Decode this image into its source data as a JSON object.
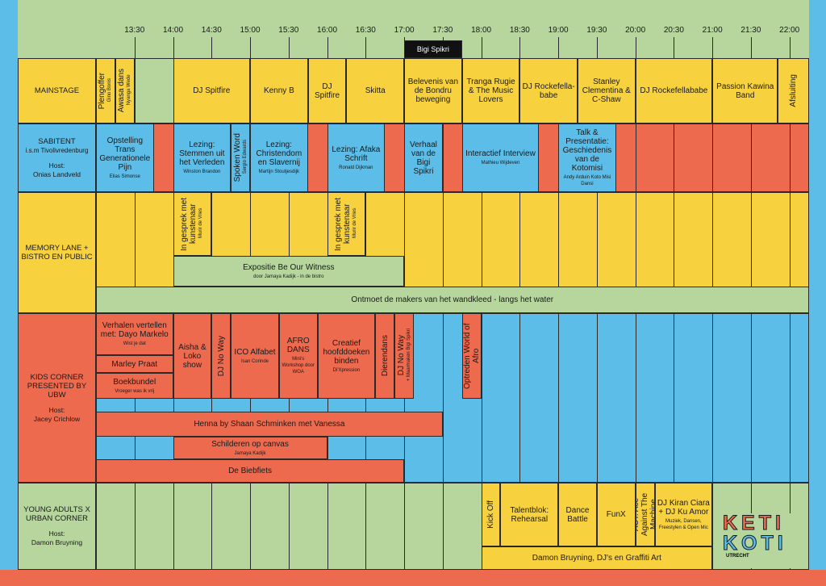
{
  "header": {
    "times": [
      "13:30",
      "14:00",
      "14:30",
      "15:00",
      "15:30",
      "16:00",
      "16:30",
      "17:00",
      "17:30",
      "18:00",
      "18:30",
      "19:00",
      "19:30",
      "20:00",
      "20:30",
      "21:00",
      "21:30",
      "22:00"
    ],
    "highlight": "Bigi Spikri"
  },
  "stages": [
    {
      "name": "MAINSTAGE",
      "events": [
        {
          "title": "Plengoffer",
          "subtitle": "Gino Bonis"
        },
        {
          "title": "Awasa dans",
          "subtitle": "Nyanga Wede"
        },
        {
          "title": "DJ Spitfire"
        },
        {
          "title": "Kenny B"
        },
        {
          "title": "DJ Spitfire"
        },
        {
          "title": "Skitta"
        },
        {
          "title": "Belevenis van de Bondru beweging"
        },
        {
          "title": "Tranga Rugie & The Music Lovers"
        },
        {
          "title": "DJ Rockefella-babe"
        },
        {
          "title": "Stanley Clementina & C-Shaw"
        },
        {
          "title": "DJ Rockefellababe"
        },
        {
          "title": "Passion Kawina Band"
        },
        {
          "title": "Afsluiting"
        }
      ]
    },
    {
      "name": "SABITENT",
      "note": "i.s.m Tivolivredenburg",
      "host_label": "Host:",
      "host": "Onias Landveld",
      "events": [
        {
          "title": "Opstelling Trans Generationele Pijn",
          "subtitle": "Elias Simonse"
        },
        {
          "title": "Lezing: Stemmen uit het Verleden",
          "subtitle": "Winston Brandon"
        },
        {
          "title": "Spoken Word",
          "subtitle": "Sergio Edwards"
        },
        {
          "title": "Lezing: Christendom en Slavernij",
          "subtitle": "Martijn Stoutjesdijk"
        },
        {
          "title": "Lezing: Afaka Schrift",
          "subtitle": "Ronald Dijkman"
        },
        {
          "title": "Verhaal van de Bigi Spikri"
        },
        {
          "title": "Interactief Interview",
          "subtitle": "Mathieu Wijdeven"
        },
        {
          "title": "Talk & Presentatie: Geschiedenis van de Kotomisi",
          "subtitle": "Andy Arduin Koto Misi Dansi"
        }
      ]
    },
    {
      "name": "MEMORY LANE + BISTRO EN PUBLIC",
      "events": [
        {
          "title": "In gesprek met kunstenaar",
          "subtitle": "Murir de Vries"
        },
        {
          "title": "In gesprek met kunstenaar",
          "subtitle": "Murir de Vries"
        },
        {
          "title": "Expositie Be Our Witness",
          "subtitle": "door Jamaya Kadijk - in de bistro"
        },
        {
          "title": "Ontmoet de makers van het wandkleed  - langs het water"
        }
      ]
    },
    {
      "name": "KIDS CORNER PRESENTED BY UBW",
      "host_label": "Host:",
      "host": "Jacey Crichlow",
      "events": [
        {
          "title": "Verhalen vertellen met: Dayo Markelo",
          "subtitle": "Wist je dat"
        },
        {
          "title": "Marley Praat"
        },
        {
          "title": "Boekbundel",
          "subtitle": "Vroeger was ik vrij"
        },
        {
          "title": "Aisha & Loko show"
        },
        {
          "title": "DJ No Way"
        },
        {
          "title": "ICO Alfabet",
          "subtitle": "Isan Corinde"
        },
        {
          "title": "AFRO DANS",
          "subtitle": "Mini's Workshop door WOA"
        },
        {
          "title": "Creatief hoofddoeken binden",
          "subtitle": "Di'Xpression"
        },
        {
          "title": "Dierendans"
        },
        {
          "title": "DJ No Way",
          "subtitle": "+ Maarmaken Bigi Spikri"
        },
        {
          "title": "Optreden World of Afro"
        },
        {
          "title": "Henna by Shaan Schminken met Vanessa"
        },
        {
          "title": "Schilderen op canvas",
          "subtitle": "Jamaya Kadijk"
        },
        {
          "title": "De Biebfiets"
        }
      ]
    },
    {
      "name": "YOUNG ADULTS X URBAN CORNER",
      "host_label": "Host:",
      "host": "Damon Bruyning",
      "events": [
        {
          "title": "Kick Off"
        },
        {
          "title": "Talentblok: Rehearsal"
        },
        {
          "title": "Dance Battle"
        },
        {
          "title": "FunX"
        },
        {
          "title": "ACT: Ace Against The Machine"
        },
        {
          "title": "DJ Kiran Ciara + DJ Ku Amor",
          "subtitle": "Muziek, Dansen, Freestylen & Open Mic"
        },
        {
          "title": "Damon Bruyning, DJ's en Graffiti Art"
        }
      ]
    }
  ],
  "logo": {
    "lines": [
      "KETI",
      "KOTI"
    ],
    "city": "UTRECHT"
  }
}
